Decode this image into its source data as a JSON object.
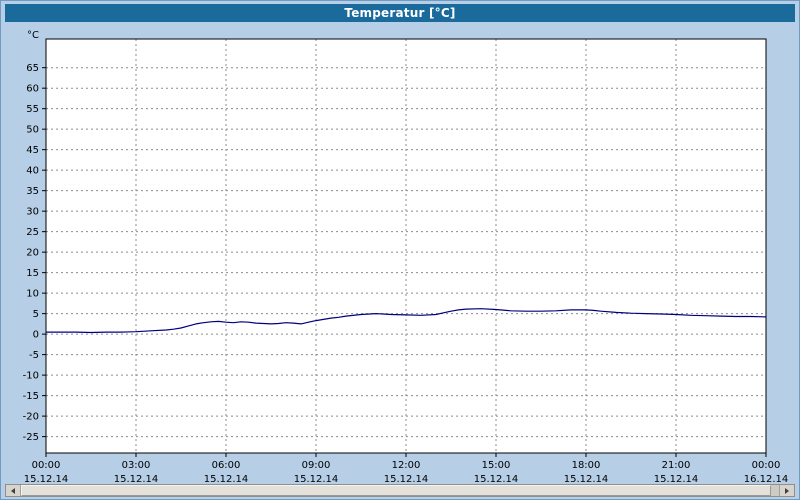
{
  "window": {
    "title": "Temperatur [°C]"
  },
  "colors": {
    "titlebar": "#1a6a9c",
    "background": "#b6cfe6",
    "plot_bg": "#ffffff",
    "grid": "#8c8c8c",
    "axis": "#000000",
    "line": "#00007f"
  },
  "chart_data": {
    "type": "line",
    "title": "Temperatur [°C]",
    "ylabel": "°C",
    "xlabel": "",
    "ylim": [
      -29,
      72
    ],
    "yticks": {
      "start": -25,
      "end": 65,
      "step": 5
    },
    "x_hours": [
      0,
      24
    ],
    "grid": true,
    "legend": "none",
    "xticks": [
      {
        "hour": 0,
        "time": "00:00",
        "date": "15.12.14"
      },
      {
        "hour": 3,
        "time": "03:00",
        "date": "15.12.14"
      },
      {
        "hour": 6,
        "time": "06:00",
        "date": "15.12.14"
      },
      {
        "hour": 9,
        "time": "09:00",
        "date": "15.12.14"
      },
      {
        "hour": 12,
        "time": "12:00",
        "date": "15.12.14"
      },
      {
        "hour": 15,
        "time": "15:00",
        "date": "15.12.14"
      },
      {
        "hour": 18,
        "time": "18:00",
        "date": "15.12.14"
      },
      {
        "hour": 21,
        "time": "21:00",
        "date": "15.12.14"
      },
      {
        "hour": 24,
        "time": "00:00",
        "date": "16.12.14"
      }
    ],
    "series": [
      {
        "name": "Temperatur",
        "color": "#00007f",
        "x": [
          0,
          0.5,
          1,
          1.5,
          2,
          2.5,
          3,
          3.5,
          4,
          4.25,
          4.5,
          4.75,
          5,
          5.25,
          5.5,
          5.75,
          6,
          6.25,
          6.5,
          6.75,
          7,
          7.25,
          7.5,
          7.75,
          8,
          8.25,
          8.5,
          8.75,
          9,
          9.25,
          9.5,
          9.75,
          10,
          10.5,
          11,
          11.5,
          12,
          12.5,
          13,
          13.25,
          13.5,
          13.75,
          14,
          14.5,
          15,
          15.5,
          16,
          16.5,
          17,
          17.5,
          18,
          18.25,
          18.5,
          19,
          19.5,
          20,
          20.5,
          21,
          21.5,
          22,
          22.5,
          23,
          23.5,
          24
        ],
        "values": [
          0.5,
          0.5,
          0.5,
          0.4,
          0.5,
          0.5,
          0.6,
          0.8,
          1.0,
          1.2,
          1.5,
          2.0,
          2.5,
          2.8,
          3.0,
          3.1,
          2.9,
          2.8,
          3.0,
          2.9,
          2.7,
          2.6,
          2.5,
          2.6,
          2.8,
          2.7,
          2.5,
          2.9,
          3.3,
          3.6,
          3.9,
          4.1,
          4.4,
          4.8,
          5.0,
          4.8,
          4.7,
          4.6,
          4.8,
          5.2,
          5.6,
          5.9,
          6.1,
          6.2,
          6.0,
          5.7,
          5.6,
          5.6,
          5.7,
          5.9,
          5.9,
          5.8,
          5.6,
          5.3,
          5.1,
          5.0,
          4.9,
          4.8,
          4.6,
          4.5,
          4.4,
          4.3,
          4.3,
          4.2
        ]
      }
    ]
  }
}
